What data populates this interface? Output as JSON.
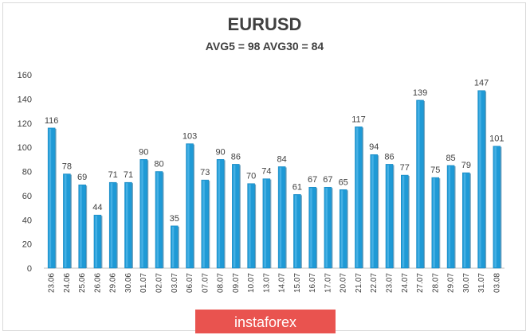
{
  "chart_data": {
    "type": "bar",
    "title": "EURUSD",
    "subtitle": "AVG5 = 98 AVG30 = 84",
    "xlabel": "",
    "ylabel": "",
    "ylim": [
      0,
      160
    ],
    "yticks": [
      0,
      20,
      40,
      60,
      80,
      100,
      120,
      140,
      160
    ],
    "grid": false,
    "legend": "none",
    "categories": [
      "23.06",
      "24.06",
      "25.06",
      "26.06",
      "29.06",
      "30.06",
      "01.07",
      "02.07",
      "03.07",
      "06.07",
      "07.07",
      "08.07",
      "09.07",
      "10.07",
      "13.07",
      "14.07",
      "15.07",
      "16.07",
      "17.07",
      "20.07",
      "21.07",
      "22.07",
      "23.07",
      "24.07",
      "27.07",
      "28.07",
      "29.07",
      "30.07",
      "31.07",
      "03.08"
    ],
    "values": [
      116,
      78,
      69,
      44,
      71,
      71,
      90,
      80,
      35,
      103,
      73,
      90,
      86,
      70,
      74,
      84,
      61,
      67,
      67,
      65,
      117,
      94,
      86,
      77,
      139,
      75,
      85,
      79,
      147,
      101
    ],
    "bar_color": "#1f9ad6"
  },
  "watermark": {
    "text": "instaforex",
    "color": "#e9534f"
  }
}
